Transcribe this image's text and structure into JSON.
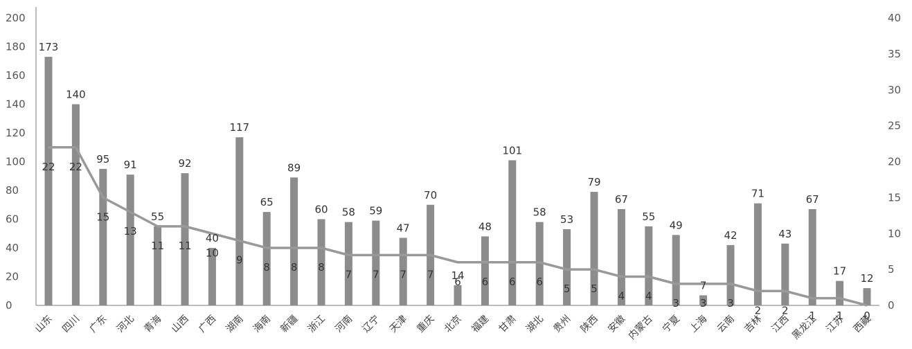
{
  "chart_data": {
    "type": "bar",
    "title": "",
    "xlabel": "",
    "ylabel": "",
    "y2label": "",
    "grid": false,
    "categories": [
      "山东",
      "四川",
      "广东",
      "河北",
      "青海",
      "山西",
      "广西",
      "湖南",
      "海南",
      "新疆",
      "浙江",
      "河南",
      "辽宁",
      "天津",
      "重庆",
      "北京",
      "福建",
      "甘肃",
      "湖北",
      "贵州",
      "陕西",
      "安徽",
      "内蒙古",
      "宁夏",
      "上海",
      "云南",
      "吉林",
      "江西",
      "黑龙江",
      "江苏",
      "西藏"
    ],
    "ylim": [
      0,
      200
    ],
    "yticks": [
      0,
      20,
      40,
      60,
      80,
      100,
      120,
      140,
      160,
      180,
      200
    ],
    "y2lim": [
      0,
      40
    ],
    "y2ticks": [
      0,
      5,
      10,
      15,
      20,
      25,
      30,
      35,
      40
    ],
    "series": [
      {
        "type": "bar",
        "axis": "left",
        "color": "#8c8c8c",
        "values": [
          173,
          140,
          95,
          91,
          55,
          92,
          40,
          117,
          65,
          89,
          60,
          58,
          59,
          47,
          70,
          14,
          48,
          101,
          58,
          53,
          79,
          67,
          55,
          49,
          7,
          42,
          71,
          43,
          67,
          17,
          12
        ]
      },
      {
        "type": "line",
        "axis": "right",
        "color": "#999999",
        "values": [
          22,
          22,
          15,
          13,
          11,
          11,
          10,
          9,
          8,
          8,
          8,
          7,
          7,
          7,
          7,
          6,
          6,
          6,
          6,
          5,
          5,
          4,
          4,
          3,
          3,
          3,
          2,
          2,
          1,
          1,
          0
        ]
      }
    ]
  }
}
